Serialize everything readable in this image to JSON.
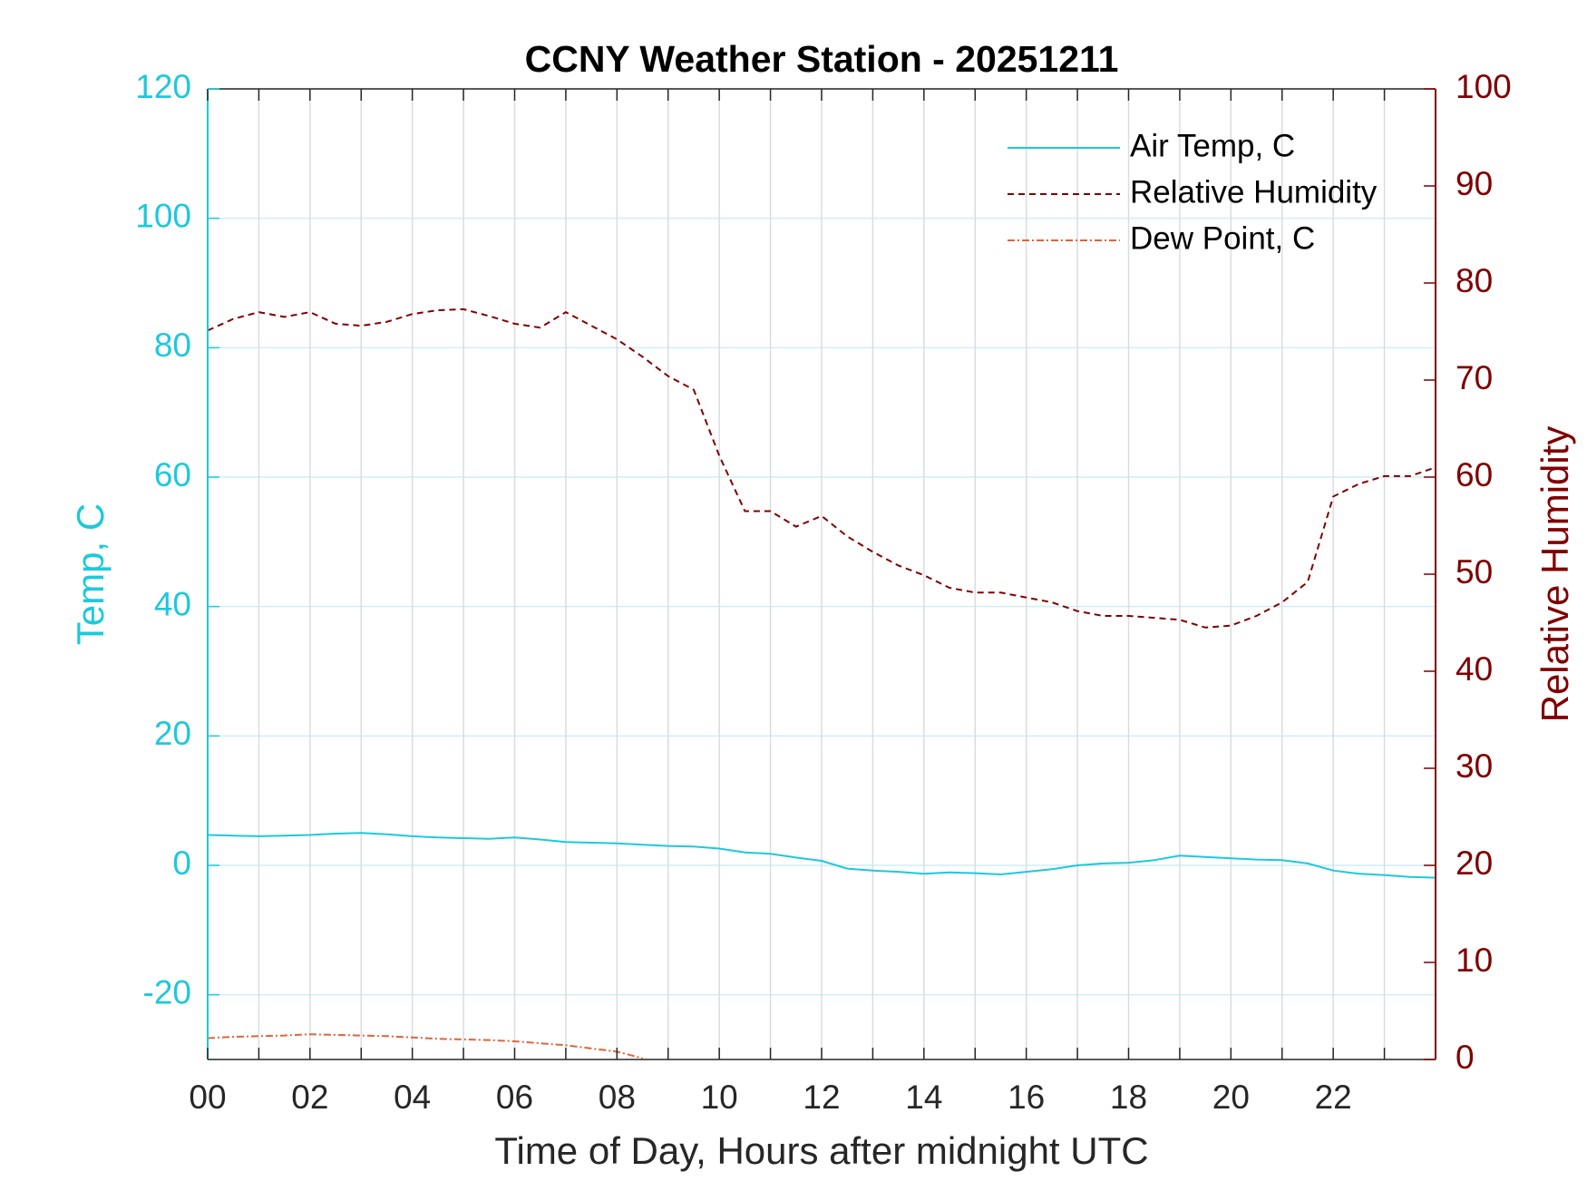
{
  "chart_data": {
    "type": "line",
    "title": "CCNY Weather Station - 20251211",
    "xlabel": "Time of Day, Hours after midnight UTC",
    "ylabel": "Temp, C",
    "y2label": "Relative Humidity",
    "x": [
      0,
      0.5,
      1,
      1.5,
      2,
      2.5,
      3,
      3.5,
      4,
      4.5,
      5,
      5.5,
      6,
      6.5,
      7,
      7.5,
      8,
      8.5,
      9,
      9.5,
      10,
      10.5,
      11,
      11.5,
      12,
      12.5,
      13,
      13.5,
      14,
      14.5,
      15,
      15.5,
      16,
      16.5,
      17,
      17.5,
      18,
      18.5,
      19,
      19.5,
      20,
      20.5,
      21,
      21.5,
      22,
      22.5,
      23,
      23.5,
      24
    ],
    "series": [
      {
        "name": "Air Temp, C",
        "color": "#1ec8dc",
        "dash": "none",
        "axis": "y",
        "values": [
          4.7,
          4.6,
          4.5,
          4.6,
          4.7,
          4.9,
          5.0,
          4.8,
          4.5,
          4.3,
          4.2,
          4.1,
          4.3,
          4.0,
          3.6,
          3.5,
          3.4,
          3.2,
          3.0,
          2.9,
          2.6,
          2.0,
          1.8,
          1.2,
          0.7,
          -0.5,
          -0.8,
          -1.0,
          -1.3,
          -1.1,
          -1.2,
          -1.4,
          -1.0,
          -0.6,
          0.0,
          0.3,
          0.4,
          0.8,
          1.5,
          1.3,
          1.1,
          0.9,
          0.8,
          0.3,
          -0.8,
          -1.3,
          -1.5,
          -1.8,
          -1.9
        ]
      },
      {
        "name": "Relative Humidity",
        "color": "#800000",
        "dash": "7,5",
        "axis": "y2",
        "values": [
          75.1,
          76.3,
          77.0,
          76.5,
          77.0,
          75.8,
          75.6,
          76.0,
          76.8,
          77.2,
          77.3,
          76.6,
          75.8,
          75.4,
          77.0,
          75.6,
          74.2,
          72.4,
          70.4,
          69.0,
          62.2,
          56.5,
          56.5,
          54.9,
          56.0,
          53.9,
          52.3,
          50.9,
          49.9,
          48.6,
          48.1,
          48.1,
          47.6,
          47.1,
          46.2,
          45.7,
          45.7,
          45.5,
          45.3,
          44.5,
          44.7,
          45.7,
          47.1,
          49.2,
          58.0,
          59.3,
          60.1,
          60.1,
          61.0
        ]
      },
      {
        "name": "Dew Point, C",
        "color": "#e0643a",
        "dash": "8,3,2,3",
        "axis": "y",
        "values": [
          -26.7,
          -26.5,
          -26.4,
          -26.3,
          -26.1,
          -26.2,
          -26.3,
          -26.4,
          -26.6,
          -26.8,
          -26.9,
          -27.0,
          -27.2,
          -27.5,
          -27.8,
          -28.3,
          -28.8,
          -29.8,
          null,
          null,
          null,
          null,
          null,
          null,
          null,
          null,
          null,
          null,
          null,
          null,
          null,
          null,
          null,
          null,
          null,
          null,
          null,
          null,
          null,
          null,
          null,
          null,
          null,
          null,
          null,
          null,
          null,
          null,
          null
        ]
      }
    ],
    "xlim": [
      0,
      24
    ],
    "xticks": [
      {
        "value": 0,
        "label": "00"
      },
      {
        "value": 2,
        "label": "02"
      },
      {
        "value": 4,
        "label": "04"
      },
      {
        "value": 6,
        "label": "06"
      },
      {
        "value": 8,
        "label": "08"
      },
      {
        "value": 10,
        "label": "10"
      },
      {
        "value": 12,
        "label": "12"
      },
      {
        "value": 14,
        "label": "14"
      },
      {
        "value": 16,
        "label": "16"
      },
      {
        "value": 18,
        "label": "18"
      },
      {
        "value": 20,
        "label": "20"
      },
      {
        "value": 22,
        "label": "22"
      }
    ],
    "xminorticks": [
      1,
      3,
      5,
      7,
      9,
      11,
      13,
      15,
      17,
      19,
      21,
      23
    ],
    "ylim": [
      -30,
      120
    ],
    "yticks": [
      -20,
      0,
      20,
      40,
      60,
      80,
      100,
      120
    ],
    "y2lim": [
      0,
      100
    ],
    "y2ticks": [
      0,
      10,
      20,
      30,
      40,
      50,
      60,
      70,
      80,
      90,
      100
    ],
    "ycolor": "#1ec8dc",
    "y2color": "#800000",
    "grid": true,
    "legend": "northeast"
  }
}
